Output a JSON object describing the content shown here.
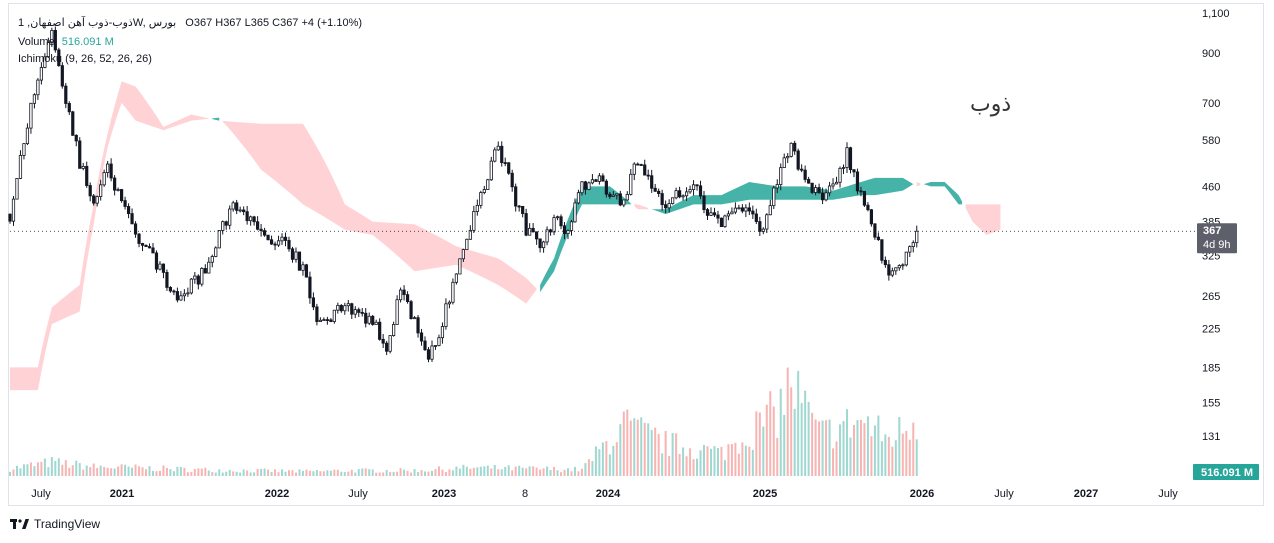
{
  "header": {
    "symbol_line": "1 ,ذوب-ذوب آهن اصفهانW, بورس",
    "ohlc_text": "O367  H367  L365  C367  +4 (+1.10%)",
    "volume_label": "Volume",
    "volume_value": "516.091 M",
    "ichimoku_label": "Ichimoku (9, 26, 52, 26, 26)"
  },
  "watermark": "ذوب",
  "footer": {
    "brand": "TradingView"
  },
  "price_tag": {
    "price": "367",
    "timer": "4d 9h"
  },
  "volume_tag": "516.091 M",
  "colors": {
    "up": "#26a69a",
    "down": "#ef5350",
    "candle": "#131722",
    "cloud_bull": "#26a69a",
    "cloud_bear": "#ffcdd2",
    "vol_up": "#9fd7d1",
    "vol_down": "#f7b4b2"
  },
  "chart_data": {
    "type": "candlestick",
    "title": "",
    "scale": "log",
    "ylim": [
      150,
      1100
    ],
    "y_ticks": [
      "1,100",
      "900",
      "700",
      "580",
      "460",
      "385",
      "325",
      "265",
      "225",
      "185",
      "155",
      "131"
    ],
    "x_ticks": [
      "July",
      "2021",
      "2022",
      "July",
      "2023",
      "8",
      "2024",
      "2025",
      "2026",
      "July",
      "2027",
      "July"
    ],
    "last_close": 367,
    "close_path": [
      {
        "t": "2020-05",
        "close": 400
      },
      {
        "t": "2020-06",
        "close": 560
      },
      {
        "t": "2020-07",
        "close": 800
      },
      {
        "t": "2020-08",
        "close": 1000
      },
      {
        "t": "2020-09",
        "close": 700
      },
      {
        "t": "2020-10",
        "close": 520
      },
      {
        "t": "2020-11",
        "close": 420
      },
      {
        "t": "2020-12",
        "close": 500
      },
      {
        "t": "2021-01",
        "close": 420
      },
      {
        "t": "2021-02",
        "close": 360
      },
      {
        "t": "2021-03",
        "close": 330
      },
      {
        "t": "2021-05",
        "close": 260
      },
      {
        "t": "2021-07",
        "close": 300
      },
      {
        "t": "2021-09",
        "close": 420
      },
      {
        "t": "2021-11",
        "close": 360
      },
      {
        "t": "2022-01",
        "close": 340
      },
      {
        "t": "2022-02",
        "close": 300
      },
      {
        "t": "2022-03",
        "close": 230
      },
      {
        "t": "2022-05",
        "close": 250
      },
      {
        "t": "2022-07",
        "close": 235
      },
      {
        "t": "2022-08",
        "close": 205
      },
      {
        "t": "2022-09",
        "close": 270
      },
      {
        "t": "2022-10",
        "close": 230
      },
      {
        "t": "2022-11",
        "close": 190
      },
      {
        "t": "2022-12",
        "close": 230
      },
      {
        "t": "2023-01",
        "close": 300
      },
      {
        "t": "2023-03",
        "close": 460
      },
      {
        "t": "2023-04",
        "close": 560
      },
      {
        "t": "2023-05",
        "close": 450
      },
      {
        "t": "2023-06",
        "close": 370
      },
      {
        "t": "2023-07",
        "close": 345
      },
      {
        "t": "2023-08",
        "close": 390
      },
      {
        "t": "2023-09",
        "close": 360
      },
      {
        "t": "2023-10",
        "close": 460
      },
      {
        "t": "2023-11",
        "close": 480
      },
      {
        "t": "2023-12",
        "close": 440
      },
      {
        "t": "2024-01",
        "close": 420
      },
      {
        "t": "2024-02",
        "close": 530
      },
      {
        "t": "2024-03",
        "close": 470
      },
      {
        "t": "2024-04",
        "close": 420
      },
      {
        "t": "2024-06",
        "close": 470
      },
      {
        "t": "2024-07",
        "close": 400
      },
      {
        "t": "2024-08",
        "close": 380
      },
      {
        "t": "2024-09",
        "close": 420
      },
      {
        "t": "2024-10",
        "close": 410
      },
      {
        "t": "2024-11",
        "close": 360
      },
      {
        "t": "2024-12",
        "close": 480
      },
      {
        "t": "2025-01",
        "close": 560
      },
      {
        "t": "2025-02",
        "close": 470
      },
      {
        "t": "2025-03",
        "close": 440
      },
      {
        "t": "2025-04",
        "close": 460
      },
      {
        "t": "2025-05",
        "close": 540
      },
      {
        "t": "2025-06",
        "close": 440
      },
      {
        "t": "2025-07",
        "close": 360
      },
      {
        "t": "2025-08",
        "close": 290
      },
      {
        "t": "2025-09",
        "close": 310
      },
      {
        "t": "2025-10",
        "close": 367
      }
    ],
    "cloud_span_a": [
      {
        "t": "2020-05",
        "v": 165
      },
      {
        "t": "2020-07",
        "v": 165
      },
      {
        "t": "2020-08",
        "v": 230
      },
      {
        "t": "2020-10",
        "v": 245
      },
      {
        "t": "2020-11",
        "v": 380
      },
      {
        "t": "2020-12",
        "v": 560
      },
      {
        "t": "2021-01",
        "v": 700
      },
      {
        "t": "2021-02",
        "v": 640
      },
      {
        "t": "2021-04",
        "v": 610
      },
      {
        "t": "2021-06",
        "v": 640
      },
      {
        "t": "2021-08",
        "v": 650
      },
      {
        "t": "2021-11",
        "v": 500
      },
      {
        "t": "2022-02",
        "v": 420
      },
      {
        "t": "2022-05",
        "v": 370
      },
      {
        "t": "2022-07",
        "v": 360
      },
      {
        "t": "2022-10",
        "v": 300
      },
      {
        "t": "2023-01",
        "v": 310
      },
      {
        "t": "2023-04",
        "v": 280
      },
      {
        "t": "2023-06",
        "v": 255
      },
      {
        "t": "2023-07",
        "v": 280
      },
      {
        "t": "2023-08",
        "v": 320
      },
      {
        "t": "2023-10",
        "v": 460
      },
      {
        "t": "2023-12",
        "v": 460
      },
      {
        "t": "2024-02",
        "v": 410
      },
      {
        "t": "2024-04",
        "v": 410
      },
      {
        "t": "2024-06",
        "v": 440
      },
      {
        "t": "2024-08",
        "v": 440
      },
      {
        "t": "2024-10",
        "v": 470
      },
      {
        "t": "2024-12",
        "v": 460
      },
      {
        "t": "2025-02",
        "v": 460
      },
      {
        "t": "2025-04",
        "v": 450
      },
      {
        "t": "2025-06",
        "v": 470
      },
      {
        "t": "2025-07",
        "v": 480
      },
      {
        "t": "2025-09",
        "v": 480
      },
      {
        "t": "2025-10",
        "v": 460
      },
      {
        "t": "2025-11",
        "v": 470
      },
      {
        "t": "2025-12",
        "v": 470
      },
      {
        "t": "2026-01",
        "v": 440
      },
      {
        "t": "2026-02",
        "v": 385
      },
      {
        "t": "2026-03",
        "v": 360
      },
      {
        "t": "2026-04",
        "v": 370
      }
    ],
    "cloud_span_b": [
      {
        "t": "2020-05",
        "v": 185
      },
      {
        "t": "2020-07",
        "v": 185
      },
      {
        "t": "2020-08",
        "v": 250
      },
      {
        "t": "2020-10",
        "v": 280
      },
      {
        "t": "2020-11",
        "v": 420
      },
      {
        "t": "2020-12",
        "v": 600
      },
      {
        "t": "2021-01",
        "v": 780
      },
      {
        "t": "2021-02",
        "v": 760
      },
      {
        "t": "2021-04",
        "v": 620
      },
      {
        "t": "2021-06",
        "v": 660
      },
      {
        "t": "2021-08",
        "v": 640
      },
      {
        "t": "2021-11",
        "v": 630
      },
      {
        "t": "2022-02",
        "v": 630
      },
      {
        "t": "2022-05",
        "v": 420
      },
      {
        "t": "2022-07",
        "v": 385
      },
      {
        "t": "2022-10",
        "v": 380
      },
      {
        "t": "2023-01",
        "v": 340
      },
      {
        "t": "2023-04",
        "v": 320
      },
      {
        "t": "2023-06",
        "v": 290
      },
      {
        "t": "2023-07",
        "v": 270
      },
      {
        "t": "2023-08",
        "v": 300
      },
      {
        "t": "2023-10",
        "v": 420
      },
      {
        "t": "2023-12",
        "v": 420
      },
      {
        "t": "2024-02",
        "v": 420
      },
      {
        "t": "2024-04",
        "v": 400
      },
      {
        "t": "2024-06",
        "v": 420
      },
      {
        "t": "2024-08",
        "v": 420
      },
      {
        "t": "2024-10",
        "v": 430
      },
      {
        "t": "2024-12",
        "v": 430
      },
      {
        "t": "2025-02",
        "v": 430
      },
      {
        "t": "2025-04",
        "v": 430
      },
      {
        "t": "2025-06",
        "v": 440
      },
      {
        "t": "2025-07",
        "v": 440
      },
      {
        "t": "2025-09",
        "v": 450
      },
      {
        "t": "2025-10",
        "v": 470
      },
      {
        "t": "2025-11",
        "v": 460
      },
      {
        "t": "2025-12",
        "v": 460
      },
      {
        "t": "2026-01",
        "v": 420
      },
      {
        "t": "2026-02",
        "v": 420
      },
      {
        "t": "2026-03",
        "v": 420
      },
      {
        "t": "2026-04",
        "v": 420
      }
    ],
    "volume_note": "relative volume bars; larger values from 2024 onward",
    "volume": [
      {
        "t": "2020-05",
        "v": 0.08
      },
      {
        "t": "2020-08",
        "v": 0.15
      },
      {
        "t": "2020-11",
        "v": 0.1
      },
      {
        "t": "2021-02",
        "v": 0.09
      },
      {
        "t": "2021-06",
        "v": 0.07
      },
      {
        "t": "2021-10",
        "v": 0.06
      },
      {
        "t": "2022-02",
        "v": 0.05
      },
      {
        "t": "2022-06",
        "v": 0.06
      },
      {
        "t": "2022-10",
        "v": 0.06
      },
      {
        "t": "2023-02",
        "v": 0.09
      },
      {
        "t": "2023-06",
        "v": 0.08
      },
      {
        "t": "2023-10",
        "v": 0.07
      },
      {
        "t": "2024-01",
        "v": 0.55
      },
      {
        "t": "2024-04",
        "v": 0.35
      },
      {
        "t": "2024-08",
        "v": 0.25
      },
      {
        "t": "2024-12",
        "v": 0.7
      },
      {
        "t": "2025-01",
        "v": 1.0
      },
      {
        "t": "2025-03",
        "v": 0.45
      },
      {
        "t": "2025-06",
        "v": 0.6
      },
      {
        "t": "2025-08",
        "v": 0.4
      },
      {
        "t": "2025-10",
        "v": 0.62
      }
    ]
  }
}
